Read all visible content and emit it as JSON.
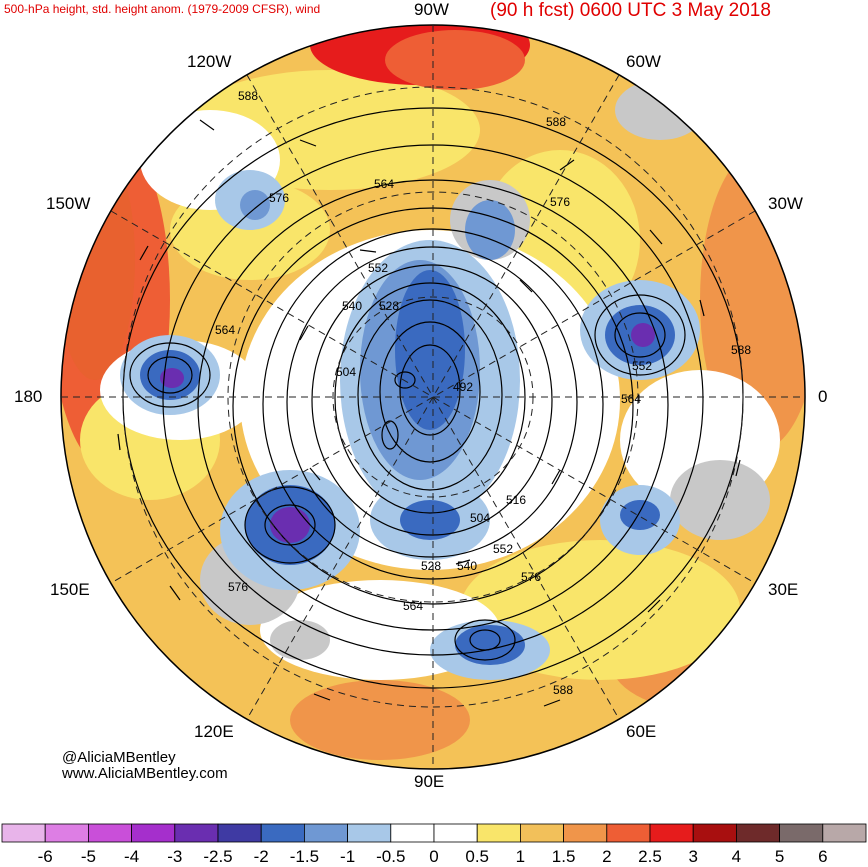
{
  "header": {
    "left_title": "500-hPa height, std. height anom. (1979-2009 CFSR), wind",
    "right_title": "(90 h fcst) 0600 UTC 3 May 2018"
  },
  "longitude_labels": {
    "top": "90W",
    "top_left": "120W",
    "top_right": "60W",
    "upper_left": "150W",
    "upper_right": "30W",
    "left": "180",
    "right": "0",
    "lower_left": "150E",
    "lower_right": "30E",
    "bottom_left": "120E",
    "bottom_right": "60E",
    "bottom": "90E"
  },
  "contour_labels": [
    "588",
    "588",
    "576",
    "564",
    "576",
    "552",
    "540",
    "528",
    "564",
    "504",
    "492",
    "552",
    "564",
    "588",
    "516",
    "504",
    "552",
    "528",
    "540",
    "576",
    "576",
    "564",
    "588"
  ],
  "credits": {
    "handle": "@AliciaMBentley",
    "website": "www.AliciaMBentley.com"
  },
  "colorbar": {
    "ticks": [
      "-6",
      "-5",
      "-4",
      "-3",
      "-2.5",
      "-2",
      "-1.5",
      "-1",
      "-0.5",
      "0",
      "0.5",
      "1",
      "1.5",
      "2",
      "2.5",
      "3",
      "4",
      "5",
      "6"
    ],
    "colors": [
      "#e8b4ea",
      "#dd7ee4",
      "#c94fd9",
      "#a52fcc",
      "#6a2eb0",
      "#3f3aa3",
      "#3a6ac0",
      "#6f98d3",
      "#a8c8e8",
      "#ffffff",
      "#ffffff",
      "#f9e56a",
      "#f2c05a",
      "#f0954a",
      "#ee5e35",
      "#e61c1c",
      "#a80f0f",
      "#6e2a2a",
      "#7a6a6a",
      "#b8a8a8"
    ]
  }
}
